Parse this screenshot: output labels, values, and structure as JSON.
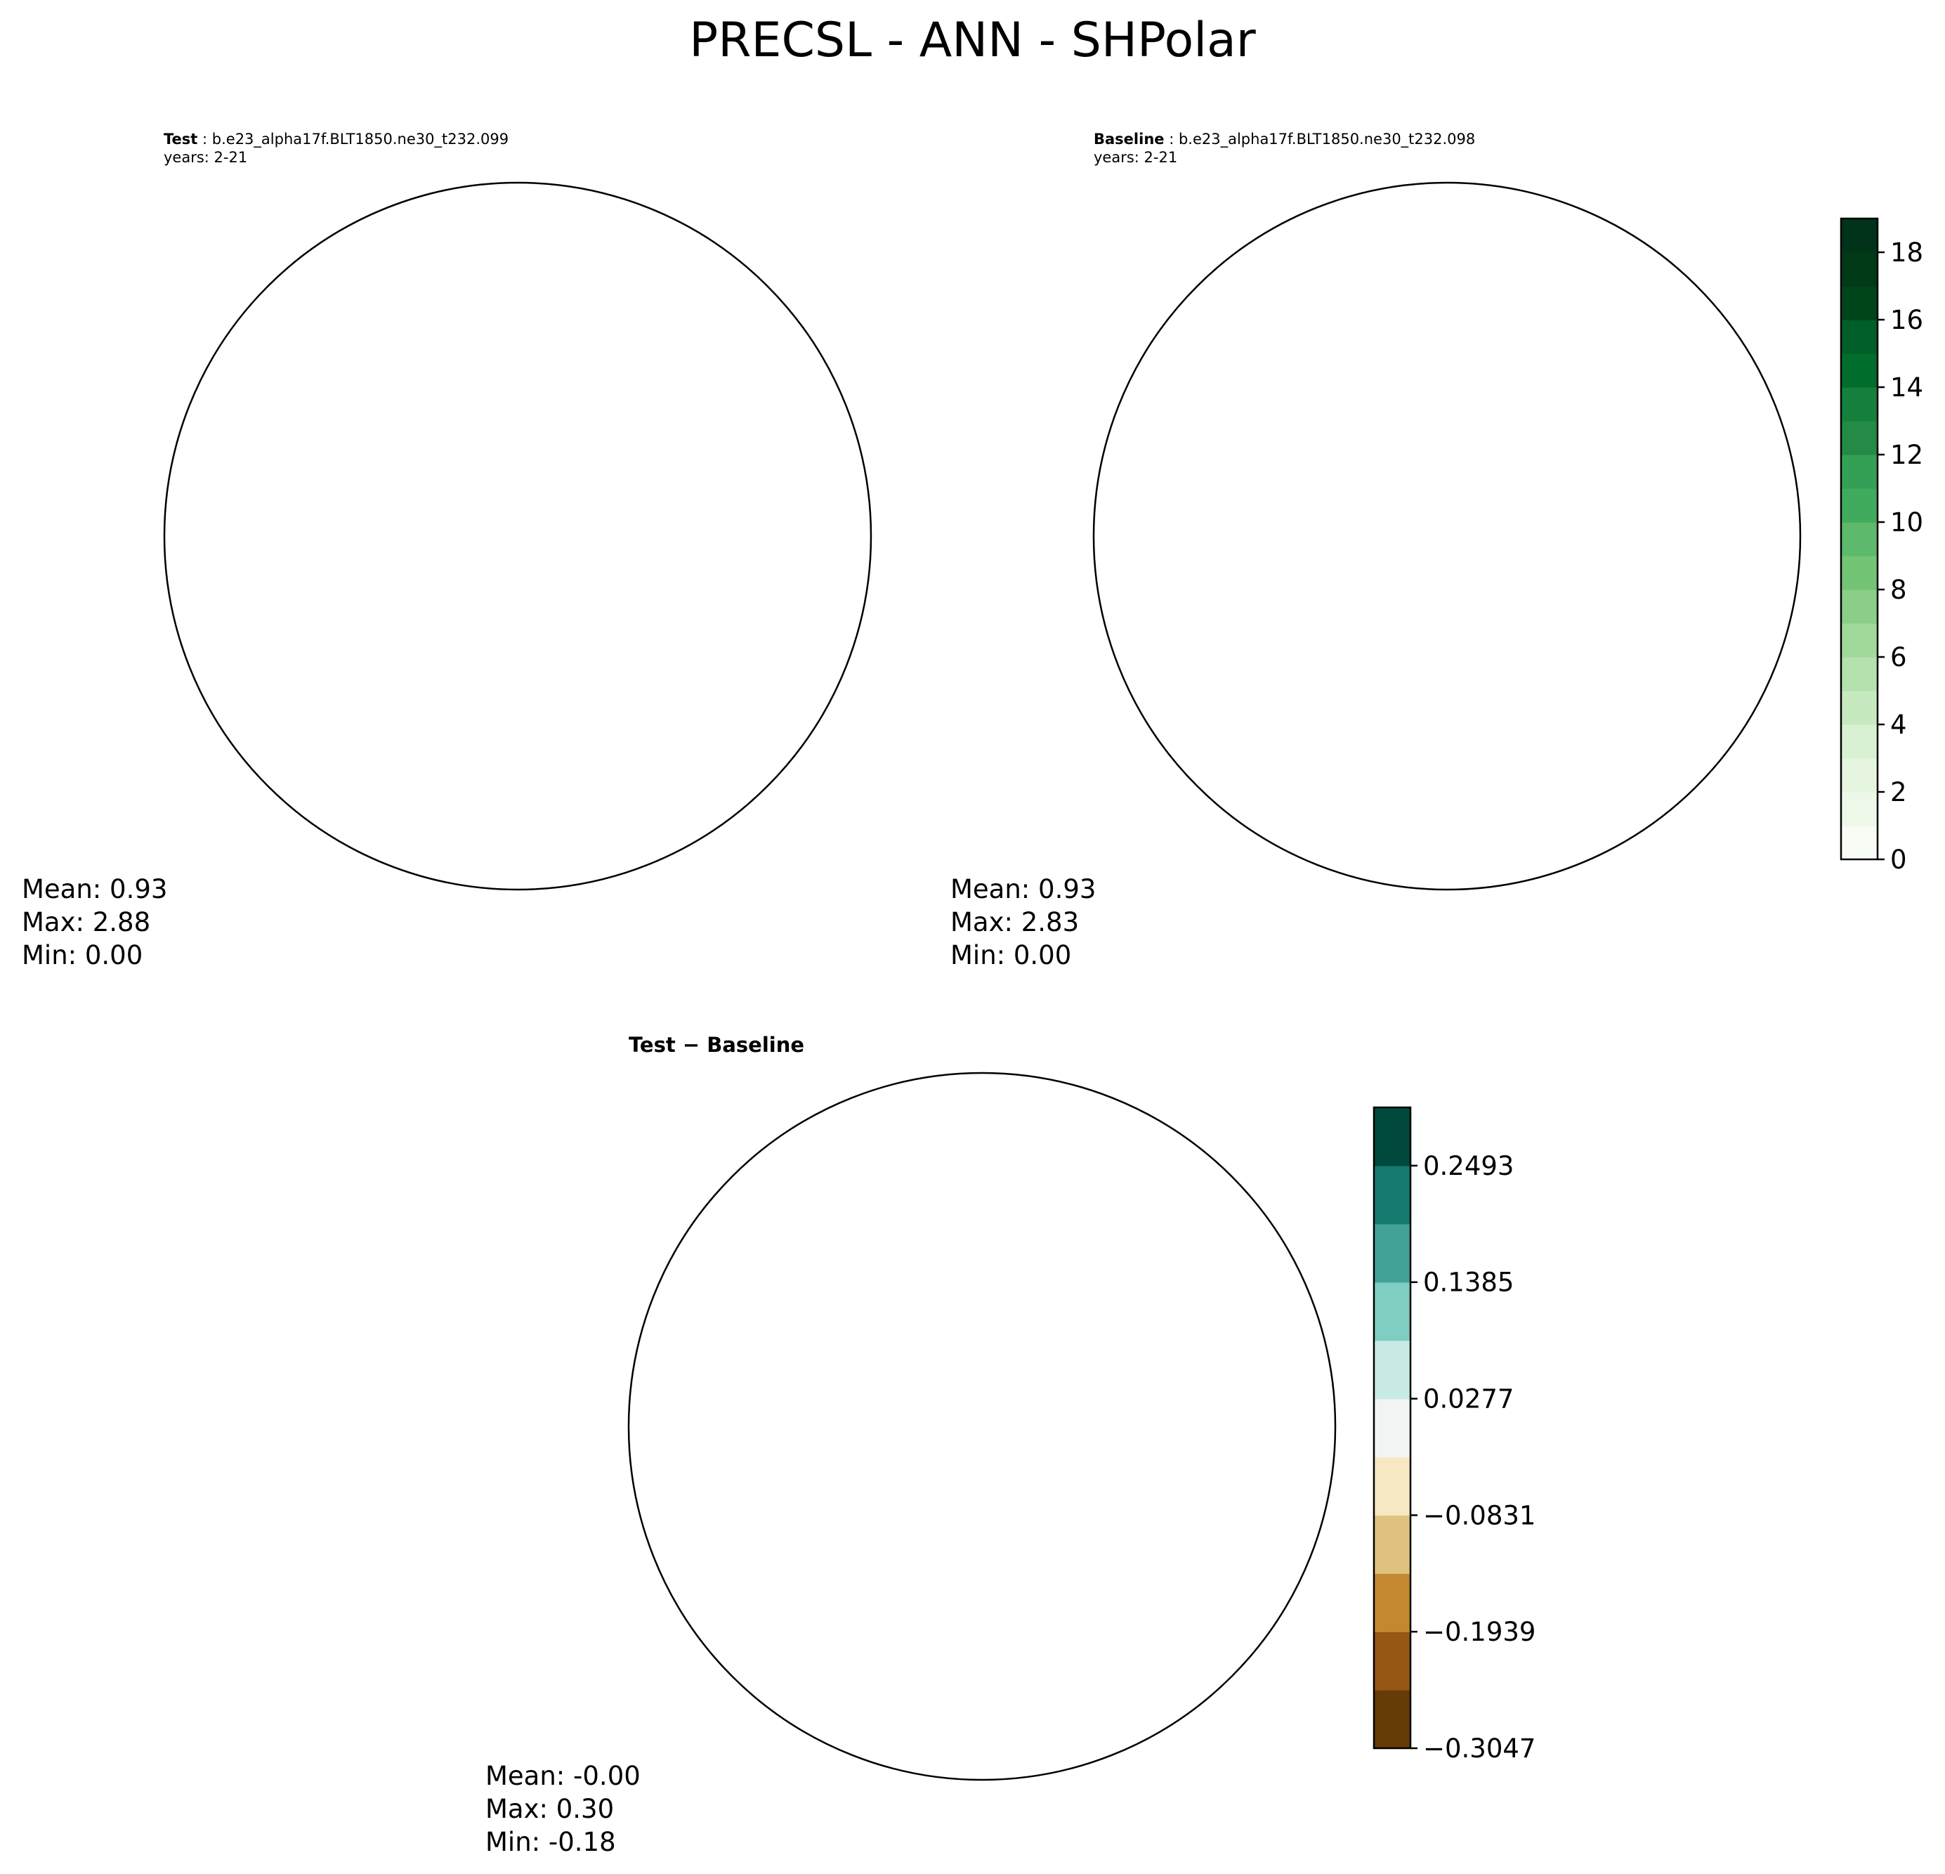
{
  "title": "PRECSL - ANN - SHPolar",
  "panels": {
    "test": {
      "label": "Test",
      "case": "b.e23_alpha17f.BLT1850.ne30_t232.099",
      "years": "years: 2-21",
      "stats": {
        "mean": "Mean:  0.93",
        "max": "Max:  2.88",
        "min": "Min:  0.00"
      }
    },
    "baseline": {
      "label": "Baseline",
      "case": "b.e23_alpha17f.BLT1850.ne30_t232.098",
      "years": "years: 2-21",
      "stats": {
        "mean": "Mean:  0.93",
        "max": "Max:  2.83",
        "min": "Min:  0.00"
      }
    },
    "diff": {
      "title": "Test − Baseline",
      "stats": {
        "mean": "Mean: -0.00",
        "max": "Max:  0.30",
        "min": "Min: -0.18"
      }
    }
  },
  "colorbars": {
    "main": {
      "range": [
        0,
        19
      ],
      "ticks": [
        "0",
        "2",
        "4",
        "6",
        "8",
        "10",
        "12",
        "14",
        "16",
        "18"
      ],
      "tick_values": [
        0,
        2,
        4,
        6,
        8,
        10,
        12,
        14,
        16,
        18
      ],
      "colors": [
        "#f7fcf5",
        "#edf8e9",
        "#e5f5e0",
        "#d9f0d3",
        "#c7e9c0",
        "#b4e1ad",
        "#a1d99b",
        "#8ace88",
        "#74c476",
        "#5db96b",
        "#41ab5d",
        "#34a055",
        "#238b45",
        "#15803d",
        "#006d2c",
        "#005f28",
        "#00441b",
        "#003a17",
        "#00331a"
      ]
    },
    "diff": {
      "range": [
        -0.3047,
        0.3047
      ],
      "ticks": [
        "0.2493",
        "0.1385",
        "0.0277",
        "−0.0831",
        "−0.1939",
        "−0.3047"
      ],
      "tick_values": [
        0.2493,
        0.1385,
        0.0277,
        -0.0831,
        -0.1939,
        -0.3047
      ],
      "colors": [
        "#653b06",
        "#955713",
        "#c48832",
        "#dfc27d",
        "#f6e8c3",
        "#f2f4f3",
        "#c7eae5",
        "#80cdc1",
        "#43a297",
        "#167a71",
        "#01493d"
      ]
    }
  },
  "map_colors": {
    "ocean_base": "#f3faef",
    "precip_band": "#e8f5e2",
    "precip_band_strong": "#e2f2dc",
    "diff_base": "#f2f4f3",
    "coast": "#000000"
  }
}
